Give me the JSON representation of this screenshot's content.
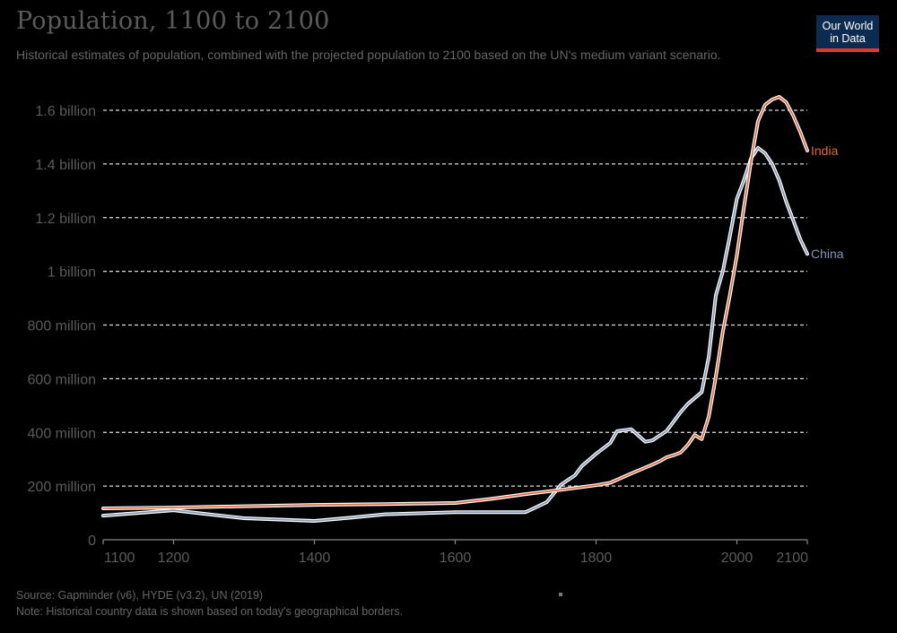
{
  "header": {
    "title": "Population, 1100 to 2100",
    "subtitle": "Historical estimates of population, combined with the projected population to 2100 based on the UN's medium variant scenario.",
    "logo_line1": "Our World",
    "logo_line2": "in Data"
  },
  "footer": {
    "source": "Source: Gapminder (v6), HYDE (v3.2), UN (2019)",
    "note": "Note: Historical country data is shown based on today's geographical borders."
  },
  "colors": {
    "india": "#e0653c",
    "china": "#8496b3",
    "logo_bg": "#0d2a50",
    "logo_accent": "#e0392c"
  },
  "chart_data": {
    "type": "line",
    "title": "Population, 1100 to 2100",
    "xlabel": "",
    "ylabel": "",
    "xlim": [
      1100,
      2100
    ],
    "ylim": [
      0,
      1600000000
    ],
    "grid": true,
    "legend": "inline-right",
    "x_ticks": [
      1100,
      1200,
      1400,
      1600,
      1800,
      2000,
      2100
    ],
    "x_tick_labels": [
      "1100",
      "1200",
      "1400",
      "1600",
      "1800",
      "2000",
      "2100"
    ],
    "y_ticks": [
      0,
      200000000,
      400000000,
      600000000,
      800000000,
      1000000000,
      1200000000,
      1400000000,
      1600000000
    ],
    "y_tick_labels": [
      "0",
      "200 million",
      "400 million",
      "600 million",
      "800 million",
      "1 billion",
      "1.2 billion",
      "1.4 billion",
      "1.6 billion"
    ],
    "series": [
      {
        "name": "India",
        "color": "#e0653c",
        "points": [
          [
            1100,
            117000000
          ],
          [
            1200,
            120000000
          ],
          [
            1300,
            125000000
          ],
          [
            1400,
            130000000
          ],
          [
            1500,
            133000000
          ],
          [
            1600,
            137000000
          ],
          [
            1650,
            152000000
          ],
          [
            1700,
            170000000
          ],
          [
            1750,
            186000000
          ],
          [
            1800,
            203000000
          ],
          [
            1820,
            212000000
          ],
          [
            1850,
            247000000
          ],
          [
            1880,
            280000000
          ],
          [
            1890,
            292000000
          ],
          [
            1900,
            307000000
          ],
          [
            1910,
            315000000
          ],
          [
            1920,
            325000000
          ],
          [
            1930,
            352000000
          ],
          [
            1940,
            390000000
          ],
          [
            1950,
            375000000
          ],
          [
            1960,
            458000000
          ],
          [
            1970,
            607000000
          ],
          [
            1980,
            775000000
          ],
          [
            1990,
            910000000
          ],
          [
            2000,
            1060000000
          ],
          [
            2010,
            1240000000
          ],
          [
            2020,
            1410000000
          ],
          [
            2030,
            1560000000
          ],
          [
            2040,
            1620000000
          ],
          [
            2050,
            1640000000
          ],
          [
            2060,
            1650000000
          ],
          [
            2070,
            1630000000
          ],
          [
            2080,
            1580000000
          ],
          [
            2090,
            1520000000
          ],
          [
            2100,
            1450000000
          ]
        ]
      },
      {
        "name": "China",
        "color": "#8496b3",
        "points": [
          [
            1100,
            90000000
          ],
          [
            1150,
            100000000
          ],
          [
            1200,
            110000000
          ],
          [
            1250,
            95000000
          ],
          [
            1300,
            80000000
          ],
          [
            1350,
            75000000
          ],
          [
            1400,
            70000000
          ],
          [
            1450,
            82000000
          ],
          [
            1500,
            95000000
          ],
          [
            1600,
            103000000
          ],
          [
            1700,
            103000000
          ],
          [
            1710,
            115000000
          ],
          [
            1730,
            140000000
          ],
          [
            1750,
            205000000
          ],
          [
            1770,
            240000000
          ],
          [
            1780,
            275000000
          ],
          [
            1800,
            320000000
          ],
          [
            1820,
            360000000
          ],
          [
            1830,
            405000000
          ],
          [
            1850,
            412000000
          ],
          [
            1870,
            365000000
          ],
          [
            1880,
            370000000
          ],
          [
            1900,
            405000000
          ],
          [
            1910,
            440000000
          ],
          [
            1920,
            475000000
          ],
          [
            1930,
            505000000
          ],
          [
            1950,
            550000000
          ],
          [
            1960,
            680000000
          ],
          [
            1970,
            910000000
          ],
          [
            1980,
            1000000000
          ],
          [
            1990,
            1130000000
          ],
          [
            2000,
            1270000000
          ],
          [
            2010,
            1340000000
          ],
          [
            2020,
            1420000000
          ],
          [
            2030,
            1460000000
          ],
          [
            2040,
            1440000000
          ],
          [
            2050,
            1400000000
          ],
          [
            2060,
            1340000000
          ],
          [
            2070,
            1260000000
          ],
          [
            2080,
            1190000000
          ],
          [
            2090,
            1120000000
          ],
          [
            2100,
            1065000000
          ]
        ]
      }
    ]
  }
}
